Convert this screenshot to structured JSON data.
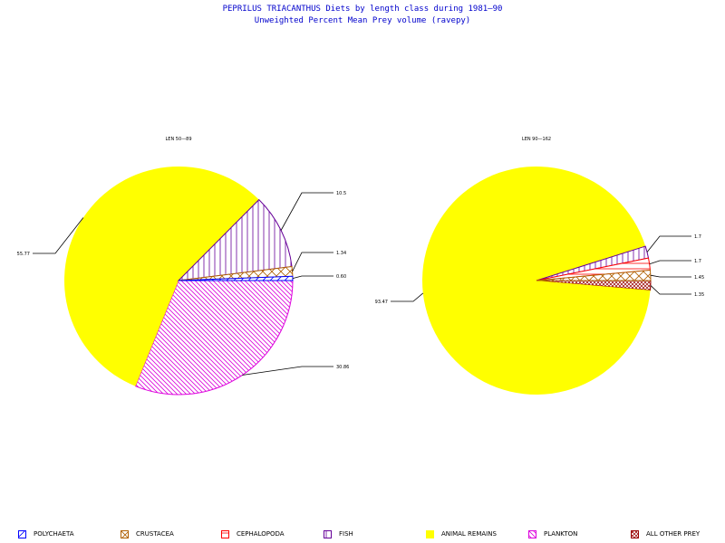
{
  "title": {
    "line1": "PEPRILUS TRIACANTHUS Diets by length class during 1981—90",
    "line2": "Unweighted Percent Mean Prey volume (ravepy)"
  },
  "colors": {
    "POLYCHAETA": "#0000ff",
    "CRUSTACEA": "#b06000",
    "CEPHALOPODA": "#ff0000",
    "FISH": "#660099",
    "ANIMAL REMAINS": "#ffff00",
    "PLANKTON": "#dd00dd",
    "ALL OTHER PREY": "#990000"
  },
  "legend": [
    {
      "label": "POLYCHAETA",
      "icon": "polychaeta-swatch"
    },
    {
      "label": "CRUSTACEA",
      "icon": "crustacea-swatch"
    },
    {
      "label": "CEPHALOPODA",
      "icon": "cephalopoda-swatch"
    },
    {
      "label": "FISH",
      "icon": "fish-swatch"
    },
    {
      "label": "ANIMAL REMAINS",
      "icon": "animal-remains-swatch"
    },
    {
      "label": "PLANKTON",
      "icon": "plankton-swatch"
    },
    {
      "label": "ALL OTHER PREY",
      "icon": "all-other-prey-swatch"
    }
  ],
  "chart_data": [
    {
      "type": "pie",
      "title": "LEN 50—89",
      "slices": [
        {
          "category": "PLANKTON",
          "value": 30.86,
          "label": "30.86"
        },
        {
          "category": "ANIMAL REMAINS",
          "value": 55.77,
          "label": "55.77"
        },
        {
          "category": "FISH",
          "value": 10.5,
          "label": "10.5"
        },
        {
          "category": "CRUSTACEA",
          "value": 1.34,
          "label": "1.34"
        },
        {
          "category": "POLYCHAETA",
          "value": 0.6,
          "label": "0.60"
        }
      ]
    },
    {
      "type": "pie",
      "title": "LEN 90—162",
      "slices": [
        {
          "category": "ALL OTHER PREY",
          "value": 1.35,
          "label": "1.35"
        },
        {
          "category": "ANIMAL REMAINS",
          "value": 93.47,
          "label": "93.47"
        },
        {
          "category": "FISH",
          "value": 1.7,
          "label": "1.7"
        },
        {
          "category": "CEPHALOPODA",
          "value": 1.7,
          "label": "1.7"
        },
        {
          "category": "CRUSTACEA",
          "value": 1.45,
          "label": "1.45"
        }
      ]
    }
  ]
}
